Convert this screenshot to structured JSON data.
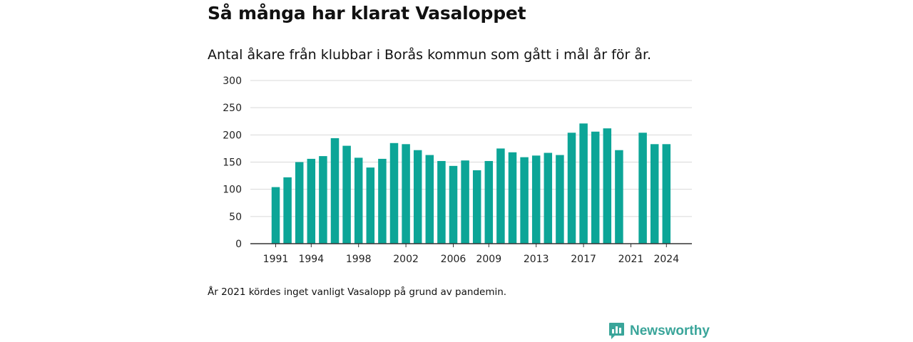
{
  "title": "Så många har klarat Vasaloppet",
  "subtitle": "Antal åkare från klubbar i Borås kommun som gått i mål år för år.",
  "note": "År 2021 kördes inget vanligt Vasalopp på grund av pandemin.",
  "brand": {
    "name": "Newsworthy",
    "icon": "newsworthy-logo-icon",
    "color": "#3aa59a"
  },
  "chart_data": {
    "type": "bar",
    "color": "#0ca597",
    "x": [
      1991,
      1992,
      1993,
      1994,
      1995,
      1996,
      1997,
      1998,
      1999,
      2000,
      2001,
      2002,
      2003,
      2004,
      2005,
      2006,
      2007,
      2008,
      2009,
      2010,
      2011,
      2012,
      2013,
      2014,
      2015,
      2016,
      2017,
      2018,
      2019,
      2020,
      2021,
      2022,
      2023,
      2024
    ],
    "values": [
      104,
      122,
      150,
      156,
      161,
      194,
      180,
      158,
      140,
      156,
      185,
      183,
      172,
      163,
      152,
      143,
      153,
      135,
      152,
      175,
      168,
      159,
      162,
      167,
      163,
      204,
      221,
      206,
      212,
      172,
      null,
      204,
      183,
      183
    ],
    "x_tick_labels": [
      1991,
      1994,
      1998,
      2002,
      2006,
      2009,
      2013,
      2017,
      2021,
      2024
    ],
    "y_ticks": [
      0,
      50,
      100,
      150,
      200,
      250,
      300
    ],
    "ylim": [
      0,
      300
    ],
    "grid": true
  }
}
